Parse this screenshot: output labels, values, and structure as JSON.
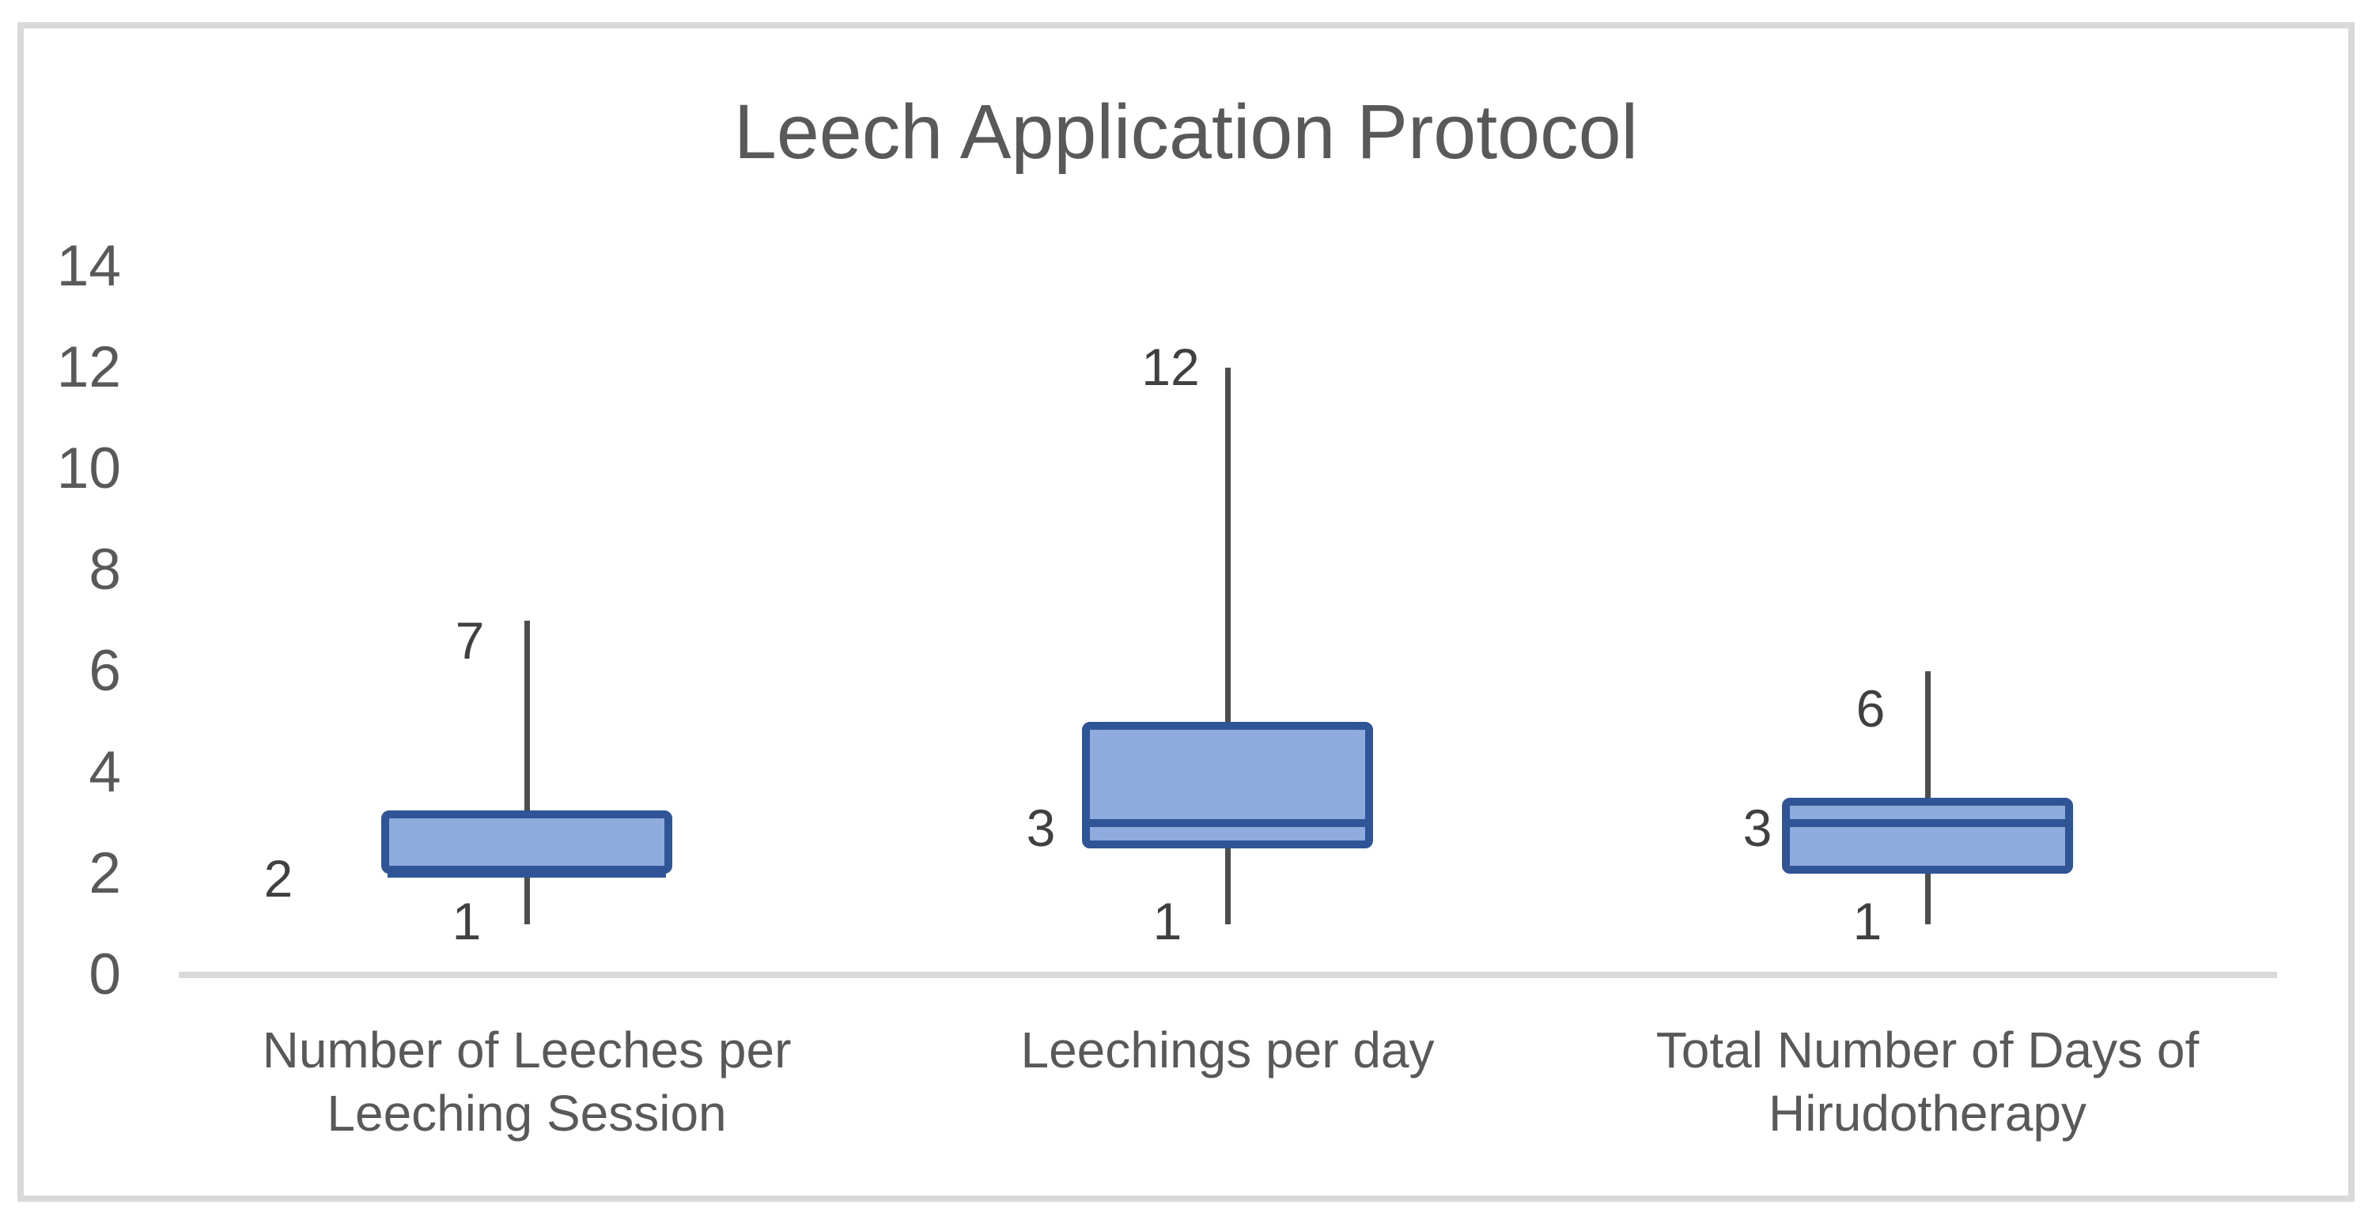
{
  "title": "Leech Application Protocol",
  "chart_data": {
    "type": "boxplot",
    "title": "Leech Application Protocol",
    "categories": [
      "Number of Leeches per Leeching Session",
      "Leechings per day",
      "Total Number of Days of Hirudotherapy"
    ],
    "category_label_lines": [
      [
        "Number of Leeches per",
        "Leeching Session"
      ],
      [
        "Leechings per day"
      ],
      [
        "Total Number of Days of",
        "Hirudotherapy"
      ]
    ],
    "series": [
      {
        "name": "Number of Leeches per Leeching Session",
        "min": 1,
        "q1": 2,
        "median": 2,
        "q3": 3.25,
        "max": 7,
        "labels": {
          "max": "7",
          "min": "1",
          "median": "2"
        }
      },
      {
        "name": "Leechings per day",
        "min": 1,
        "q1": 2.5,
        "median": 3,
        "q3": 5,
        "max": 12,
        "labels": {
          "max": "12",
          "min": "1",
          "median": "3"
        }
      },
      {
        "name": "Total Number of Days of Hirudotherapy",
        "min": 1,
        "q1": 2,
        "median": 3,
        "q3": 3.5,
        "max": 6,
        "labels": {
          "max": "6",
          "min": "1",
          "median": "3"
        }
      }
    ],
    "y_axis": {
      "min": 0,
      "max": 14,
      "tick_step": 2,
      "ticks": [
        0,
        2,
        4,
        6,
        8,
        10,
        12,
        14
      ],
      "grid": false
    },
    "legend_position": null,
    "colors": {
      "box_fill": "#8FAADC",
      "box_border": "#2F5597",
      "whisker": "#4D4D4D",
      "axis_line": "#D9D9D9",
      "frame_border": "#D9D9D9",
      "text": "#595959",
      "annotation_text": "#404040"
    }
  }
}
